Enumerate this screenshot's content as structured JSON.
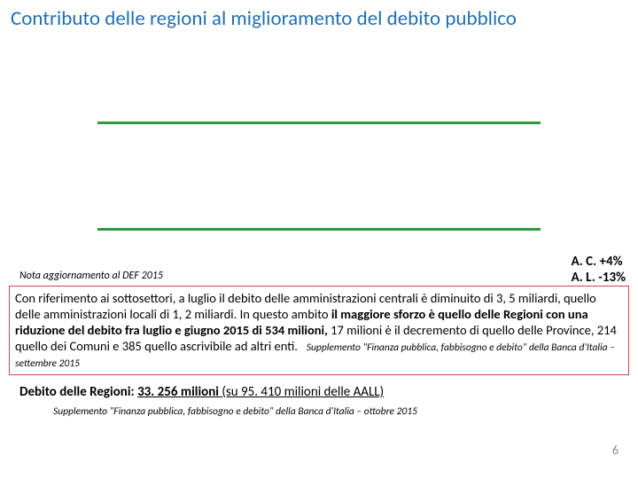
{
  "colors": {
    "title": "#1f6fb5",
    "chart_line": "#2d9a3f",
    "annotation_text": "#000000",
    "box_border": "#c24a4a",
    "box_text": "#000000",
    "page_num": "#8a8a8a",
    "body_text": "#000000"
  },
  "title": "Contributo delle regioni al miglioramento del debito pubblico",
  "chart": {
    "type": "line-indicator",
    "line_color": "#2d9a3f",
    "line_thickness": 3
  },
  "annotations": {
    "ac": "A. C. +4%",
    "al": "A. L. -13%"
  },
  "source_note": "Nota aggiornamento al DEF 2015",
  "body": {
    "p1a": "Con riferimento ai sottosettori, a luglio il debito delle amministrazioni centrali è diminuito di 3, 5 miliardi, quello delle amministrazioni locali di 1, 2 miliardi. In questo ambito ",
    "p1b_bold": "il maggiore sforzo è quello delle Regioni con una riduzione del debito fra luglio e giugno 2015 di 534 milioni,",
    "p1c": " 17 milioni è il decremento di quello delle Province, 214 quello dei Comuni e 385 quello ascrivibile ad altri enti.",
    "inline_source": "Supplemento \"Finanza pubblica, fabbisogno e debito\" della Banca d'Italia – settembre 2015"
  },
  "debt": {
    "label": "Debito delle Regioni:",
    "value_num": "33. 256 milioni",
    "value_paren": "(su 95. 410 milioni delle AALL)"
  },
  "footer_source": "Supplemento \"Finanza pubblica, fabbisogno e debito\" della Banca d'Italia – ottobre 2015",
  "page_number": "6"
}
